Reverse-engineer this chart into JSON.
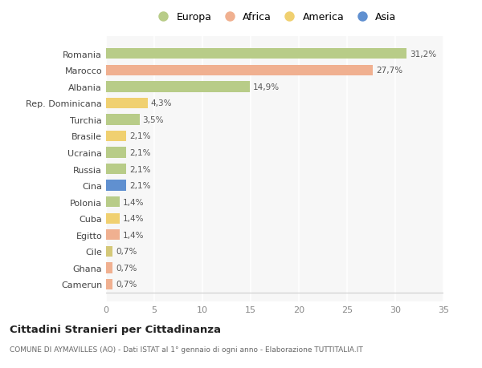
{
  "categories": [
    "Camerun",
    "Ghana",
    "Cile",
    "Egitto",
    "Cuba",
    "Polonia",
    "Cina",
    "Russia",
    "Ucraina",
    "Brasile",
    "Turchia",
    "Rep. Dominicana",
    "Albania",
    "Marocco",
    "Romania"
  ],
  "values": [
    0.7,
    0.7,
    0.7,
    1.4,
    1.4,
    1.4,
    2.1,
    2.1,
    2.1,
    2.1,
    3.5,
    4.3,
    14.9,
    27.7,
    31.2
  ],
  "labels": [
    "0,7%",
    "0,7%",
    "0,7%",
    "1,4%",
    "1,4%",
    "1,4%",
    "2,1%",
    "2,1%",
    "2,1%",
    "2,1%",
    "3,5%",
    "4,3%",
    "14,9%",
    "27,7%",
    "31,2%"
  ],
  "colors": [
    "#F0B090",
    "#F0B090",
    "#D4C878",
    "#F0B090",
    "#F0D070",
    "#B8CC88",
    "#6090D0",
    "#B8CC88",
    "#B8CC88",
    "#F0D070",
    "#B8CC88",
    "#F0D070",
    "#B8CC88",
    "#F0B090",
    "#B8CC88"
  ],
  "legend_labels": [
    "Europa",
    "Africa",
    "America",
    "Asia"
  ],
  "legend_colors": [
    "#B8CC88",
    "#F0B090",
    "#F0D070",
    "#6090D0"
  ],
  "title": "Cittadini Stranieri per Cittadinanza",
  "subtitle": "COMUNE DI AYMAVILLES (AO) - Dati ISTAT al 1° gennaio di ogni anno - Elaborazione TUTTITALIA.IT",
  "xlim": [
    0,
    35
  ],
  "xticks": [
    0,
    5,
    10,
    15,
    20,
    25,
    30,
    35
  ],
  "bg_color": "#ffffff",
  "plot_bg_color": "#f7f7f7"
}
